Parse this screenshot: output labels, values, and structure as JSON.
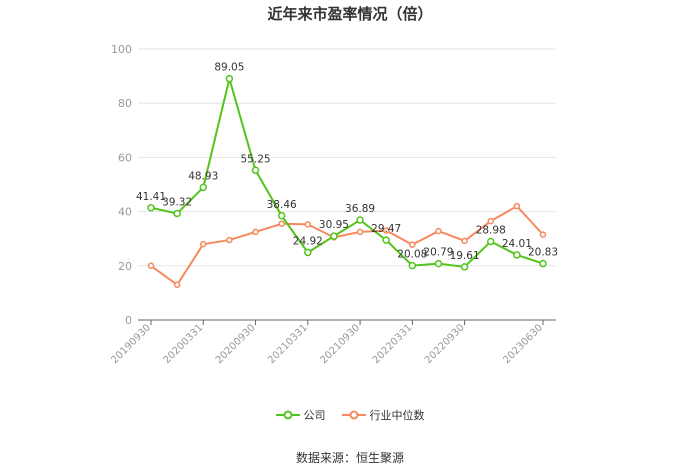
{
  "title": "近年来市盈率情况（倍）",
  "source": "数据来源：恒生聚源",
  "colors": {
    "company": "#52c41a",
    "industry": "#f7895e",
    "grid": "#e6e6e6",
    "axis": "#999999"
  },
  "legend": [
    {
      "name": "公司",
      "icon": "line-circle-icon"
    },
    {
      "name": "行业中位数",
      "icon": "line-circle-icon"
    }
  ],
  "chart_data": {
    "type": "line",
    "title": "近年来市盈率情况（倍）",
    "ylim": [
      0,
      100
    ],
    "yticks": [
      0,
      20,
      40,
      60,
      80,
      100
    ],
    "x_tick_labels": [
      "20190930",
      "20200331",
      "20200930",
      "20210331",
      "20210930",
      "20220331",
      "20220930",
      "20230630"
    ],
    "x": [
      "20190930",
      "20191231",
      "20200331",
      "20200630",
      "20200930",
      "20201231",
      "20210331",
      "20210630",
      "20210930",
      "20211231",
      "20220331",
      "20220630",
      "20220930",
      "20221231",
      "20230331",
      "20230630"
    ],
    "grid": true,
    "legend_position": "bottom",
    "series": [
      {
        "name": "公司",
        "values": [
          41.41,
          39.32,
          48.93,
          89.05,
          55.25,
          38.46,
          24.92,
          30.95,
          36.89,
          29.47,
          20.08,
          20.79,
          19.61,
          28.98,
          24.01,
          20.83
        ],
        "labels": [
          "41.41",
          "39.32",
          "48.93",
          "89.05",
          "55.25",
          "38.46",
          "24.92",
          "30.95",
          "36.89",
          "29.47",
          "20.08",
          "20.79",
          "19.61",
          "28.98",
          "24.01",
          "20.83"
        ]
      },
      {
        "name": "行业中位数",
        "values": [
          20,
          13,
          28,
          29.5,
          32.5,
          35.5,
          35.3,
          30.5,
          32.5,
          33,
          27.8,
          32.8,
          29.2,
          36.5,
          42,
          31.5
        ]
      }
    ]
  }
}
